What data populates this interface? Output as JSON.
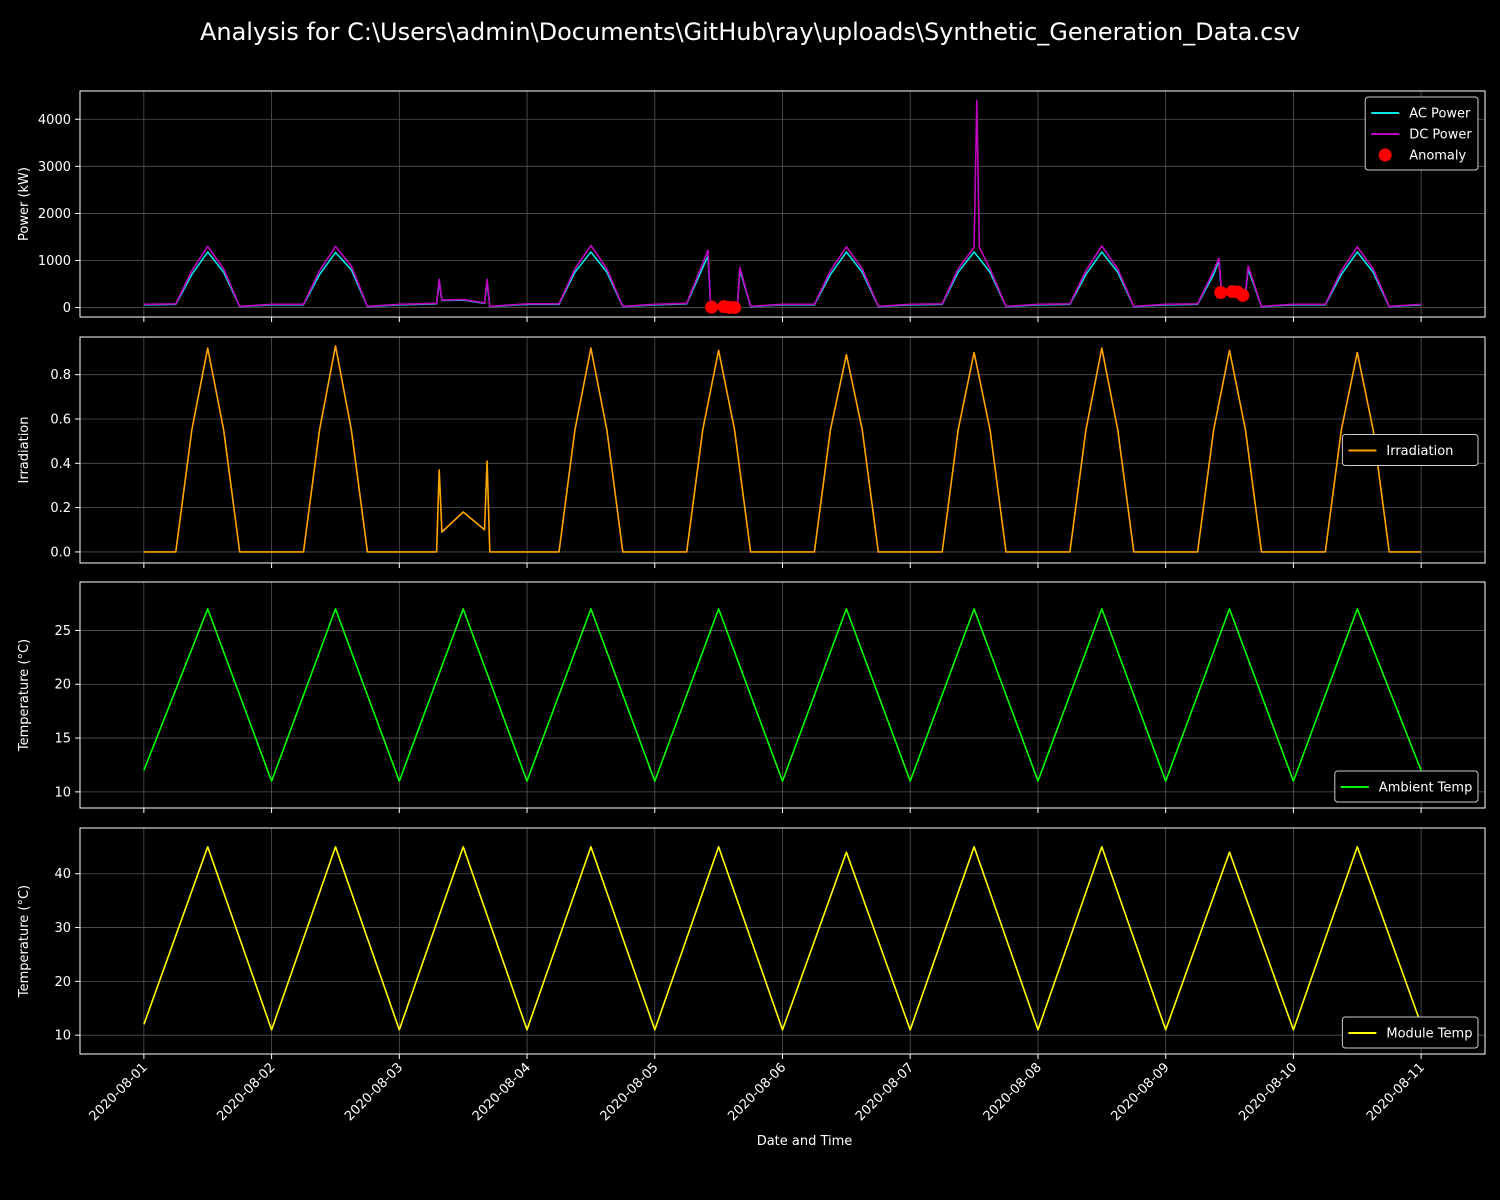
{
  "title": "Analysis for C:\\Users\\admin\\Documents\\GitHub\\ray\\uploads\\Synthetic_Generation_Data.csv",
  "xlabel": "Date and Time",
  "x_ticks": [
    "2020-08-01",
    "2020-08-02",
    "2020-08-03",
    "2020-08-04",
    "2020-08-05",
    "2020-08-06",
    "2020-08-07",
    "2020-08-08",
    "2020-08-09",
    "2020-08-10",
    "2020-08-11"
  ],
  "x_range_days": [
    -0.5,
    10.5
  ],
  "colors": {
    "background": "#000000",
    "grid": "#555555",
    "axes": "#ffffff"
  },
  "chart_data": [
    {
      "type": "line",
      "ylabel": "Power (kW)",
      "ylim": [
        -200,
        4600
      ],
      "yticks": [
        0,
        1000,
        2000,
        3000,
        4000
      ],
      "grid": true,
      "legend_position": "top-right",
      "series": [
        {
          "name": "AC Power",
          "color": "#00e5e5",
          "kind": "line",
          "x": [
            "2020-08-01 00:00",
            "2020-08-01 06:00",
            "2020-08-01 09:00",
            "2020-08-01 12:00",
            "2020-08-01 15:00",
            "2020-08-01 18:00",
            "2020-08-02 00:00",
            "2020-08-02 06:00",
            "2020-08-02 09:00",
            "2020-08-02 12:00",
            "2020-08-02 15:00",
            "2020-08-02 18:00",
            "2020-08-03 00:00",
            "2020-08-03 07:00",
            "2020-08-03 07:30",
            "2020-08-03 08:00",
            "2020-08-03 12:00",
            "2020-08-03 16:00",
            "2020-08-03 16:30",
            "2020-08-03 17:00",
            "2020-08-04 00:00",
            "2020-08-04 06:00",
            "2020-08-04 09:00",
            "2020-08-04 12:00",
            "2020-08-04 15:00",
            "2020-08-04 18:00",
            "2020-08-05 00:00",
            "2020-08-05 06:00",
            "2020-08-05 10:00",
            "2020-08-05 10:30",
            "2020-08-05 11:00",
            "2020-08-05 15:30",
            "2020-08-05 16:00",
            "2020-08-05 18:00",
            "2020-08-06 00:00",
            "2020-08-06 06:00",
            "2020-08-06 09:00",
            "2020-08-06 12:00",
            "2020-08-06 15:00",
            "2020-08-06 18:00",
            "2020-08-07 00:00",
            "2020-08-07 06:00",
            "2020-08-07 09:00",
            "2020-08-07 12:00",
            "2020-08-07 15:00",
            "2020-08-07 18:00",
            "2020-08-08 00:00",
            "2020-08-08 06:00",
            "2020-08-08 09:00",
            "2020-08-08 12:00",
            "2020-08-08 15:00",
            "2020-08-08 18:00",
            "2020-08-09 00:00",
            "2020-08-09 06:00",
            "2020-08-09 09:00",
            "2020-08-09 10:00",
            "2020-08-09 10:30",
            "2020-08-09 15:00",
            "2020-08-09 15:30",
            "2020-08-09 18:00",
            "2020-08-10 00:00",
            "2020-08-10 06:00",
            "2020-08-10 09:00",
            "2020-08-10 12:00",
            "2020-08-10 15:00",
            "2020-08-10 18:00",
            "2020-08-10 24:00"
          ],
          "values": [
            60,
            70,
            700,
            1180,
            750,
            20,
            60,
            60,
            700,
            1170,
            800,
            20,
            60,
            80,
            550,
            150,
            160,
            90,
            550,
            20,
            70,
            70,
            750,
            1180,
            750,
            20,
            60,
            80,
            1100,
            0,
            0,
            0,
            800,
            20,
            60,
            60,
            700,
            1180,
            750,
            20,
            60,
            70,
            750,
            1180,
            750,
            20,
            60,
            70,
            700,
            1180,
            750,
            20,
            60,
            70,
            700,
            1000,
            300,
            300,
            820,
            20,
            60,
            60,
            700,
            1180,
            750,
            20,
            60
          ]
        },
        {
          "name": "DC Power",
          "color": "#c000c0",
          "kind": "line",
          "x": [
            "2020-08-01 00:00",
            "2020-08-01 06:00",
            "2020-08-01 09:00",
            "2020-08-01 12:00",
            "2020-08-01 15:00",
            "2020-08-01 18:00",
            "2020-08-02 00:00",
            "2020-08-02 06:00",
            "2020-08-02 09:00",
            "2020-08-02 12:00",
            "2020-08-02 15:00",
            "2020-08-02 18:00",
            "2020-08-03 00:00",
            "2020-08-03 07:00",
            "2020-08-03 07:30",
            "2020-08-03 08:00",
            "2020-08-03 12:00",
            "2020-08-03 16:00",
            "2020-08-03 16:30",
            "2020-08-03 17:00",
            "2020-08-04 00:00",
            "2020-08-04 06:00",
            "2020-08-04 09:00",
            "2020-08-04 12:00",
            "2020-08-04 15:00",
            "2020-08-04 18:00",
            "2020-08-05 00:00",
            "2020-08-05 06:00",
            "2020-08-05 10:00",
            "2020-08-05 10:30",
            "2020-08-05 11:00",
            "2020-08-05 15:30",
            "2020-08-05 16:00",
            "2020-08-05 18:00",
            "2020-08-06 00:00",
            "2020-08-06 06:00",
            "2020-08-06 09:00",
            "2020-08-06 12:00",
            "2020-08-06 15:00",
            "2020-08-06 18:00",
            "2020-08-07 00:00",
            "2020-08-07 06:00",
            "2020-08-07 09:00",
            "2020-08-07 12:00",
            "2020-08-07 12:30",
            "2020-08-07 13:00",
            "2020-08-07 15:00",
            "2020-08-07 18:00",
            "2020-08-08 00:00",
            "2020-08-08 06:00",
            "2020-08-08 09:00",
            "2020-08-08 12:00",
            "2020-08-08 15:00",
            "2020-08-08 18:00",
            "2020-08-09 00:00",
            "2020-08-09 06:00",
            "2020-08-09 09:00",
            "2020-08-09 10:00",
            "2020-08-09 10:30",
            "2020-08-09 15:00",
            "2020-08-09 15:30",
            "2020-08-09 18:00",
            "2020-08-10 00:00",
            "2020-08-10 06:00",
            "2020-08-10 09:00",
            "2020-08-10 12:00",
            "2020-08-10 15:00",
            "2020-08-10 18:00",
            "2020-08-10 24:00"
          ],
          "values": [
            70,
            80,
            780,
            1300,
            820,
            25,
            70,
            70,
            780,
            1300,
            880,
            25,
            70,
            90,
            600,
            160,
            170,
            100,
            600,
            25,
            80,
            80,
            820,
            1320,
            820,
            25,
            70,
            90,
            1220,
            0,
            0,
            0,
            850,
            25,
            70,
            70,
            780,
            1290,
            820,
            25,
            70,
            80,
            820,
            1280,
            4400,
            1280,
            820,
            25,
            70,
            80,
            780,
            1310,
            820,
            25,
            70,
            80,
            780,
            1050,
            320,
            320,
            880,
            25,
            70,
            70,
            780,
            1290,
            820,
            25,
            70
          ]
        },
        {
          "name": "Anomaly",
          "color": "#ff0000",
          "kind": "scatter",
          "x": [
            "2020-08-05 10:40",
            "2020-08-05 13:00",
            "2020-08-05 14:00",
            "2020-08-05 15:00",
            "2020-08-09 10:20",
            "2020-08-09 12:30",
            "2020-08-09 13:30",
            "2020-08-09 14:30"
          ],
          "values": [
            10,
            20,
            5,
            0,
            320,
            340,
            330,
            260
          ]
        }
      ]
    },
    {
      "type": "line",
      "ylabel": "Irradiation",
      "ylim": [
        -0.05,
        0.97
      ],
      "yticks": [
        0.0,
        0.2,
        0.4,
        0.6,
        0.8
      ],
      "grid": true,
      "legend_position": "center-right",
      "series": [
        {
          "name": "Irradiation",
          "color": "#ffa500",
          "kind": "line",
          "x": [
            "2020-08-01 00:00",
            "2020-08-01 06:00",
            "2020-08-01 09:00",
            "2020-08-01 12:00",
            "2020-08-01 15:00",
            "2020-08-01 18:00",
            "2020-08-02 00:00",
            "2020-08-02 06:00",
            "2020-08-02 09:00",
            "2020-08-02 12:00",
            "2020-08-02 15:00",
            "2020-08-02 18:00",
            "2020-08-03 00:00",
            "2020-08-03 07:00",
            "2020-08-03 07:30",
            "2020-08-03 08:00",
            "2020-08-03 12:00",
            "2020-08-03 16:00",
            "2020-08-03 16:30",
            "2020-08-03 17:00",
            "2020-08-04 00:00",
            "2020-08-04 06:00",
            "2020-08-04 09:00",
            "2020-08-04 12:00",
            "2020-08-04 15:00",
            "2020-08-04 18:00",
            "2020-08-05 00:00",
            "2020-08-05 06:00",
            "2020-08-05 09:00",
            "2020-08-05 12:00",
            "2020-08-05 15:00",
            "2020-08-05 18:00",
            "2020-08-06 00:00",
            "2020-08-06 06:00",
            "2020-08-06 09:00",
            "2020-08-06 12:00",
            "2020-08-06 15:00",
            "2020-08-06 18:00",
            "2020-08-07 00:00",
            "2020-08-07 06:00",
            "2020-08-07 09:00",
            "2020-08-07 12:00",
            "2020-08-07 15:00",
            "2020-08-07 18:00",
            "2020-08-08 00:00",
            "2020-08-08 06:00",
            "2020-08-08 09:00",
            "2020-08-08 12:00",
            "2020-08-08 15:00",
            "2020-08-08 18:00",
            "2020-08-09 00:00",
            "2020-08-09 06:00",
            "2020-08-09 09:00",
            "2020-08-09 12:00",
            "2020-08-09 15:00",
            "2020-08-09 18:00",
            "2020-08-10 00:00",
            "2020-08-10 06:00",
            "2020-08-10 09:00",
            "2020-08-10 12:00",
            "2020-08-10 15:00",
            "2020-08-10 18:00",
            "2020-08-10 24:00"
          ],
          "values": [
            0,
            0,
            0.55,
            0.92,
            0.55,
            0,
            0,
            0,
            0.55,
            0.93,
            0.55,
            0,
            0,
            0,
            0.37,
            0.09,
            0.18,
            0.1,
            0.41,
            0,
            0,
            0,
            0.55,
            0.92,
            0.55,
            0,
            0,
            0,
            0.55,
            0.91,
            0.55,
            0,
            0,
            0,
            0.55,
            0.89,
            0.55,
            0,
            0,
            0,
            0.55,
            0.9,
            0.55,
            0,
            0,
            0,
            0.55,
            0.92,
            0.55,
            0,
            0,
            0,
            0.55,
            0.91,
            0.55,
            0,
            0,
            0,
            0.55,
            0.9,
            0.55,
            0,
            0
          ]
        }
      ]
    },
    {
      "type": "line",
      "ylabel": "Temperature (°C)",
      "ylim": [
        8.5,
        29.5
      ],
      "yticks": [
        10,
        15,
        20,
        25
      ],
      "grid": true,
      "legend_position": "bottom-right",
      "series": [
        {
          "name": "Ambient Temp",
          "color": "#00ff00",
          "kind": "line",
          "x": [
            "2020-08-01 00:00",
            "2020-08-01 12:00",
            "2020-08-02 00:00",
            "2020-08-02 12:00",
            "2020-08-03 00:00",
            "2020-08-03 12:00",
            "2020-08-04 00:00",
            "2020-08-04 12:00",
            "2020-08-05 00:00",
            "2020-08-05 12:00",
            "2020-08-06 00:00",
            "2020-08-06 12:00",
            "2020-08-07 00:00",
            "2020-08-07 12:00",
            "2020-08-08 00:00",
            "2020-08-08 12:00",
            "2020-08-09 00:00",
            "2020-08-09 12:00",
            "2020-08-10 00:00",
            "2020-08-10 12:00",
            "2020-08-10 24:00"
          ],
          "values": [
            12,
            27,
            11,
            27,
            11,
            27,
            11,
            27,
            11,
            27,
            11,
            27,
            11,
            27,
            11,
            27,
            11,
            27,
            11,
            27,
            12
          ]
        }
      ]
    },
    {
      "type": "line",
      "ylabel": "Temperature (°C)",
      "ylim": [
        6.5,
        48.5
      ],
      "yticks": [
        10,
        20,
        30,
        40
      ],
      "grid": true,
      "legend_position": "bottom-right",
      "series": [
        {
          "name": "Module Temp",
          "color": "#ffff00",
          "kind": "line",
          "x": [
            "2020-08-01 00:00",
            "2020-08-01 12:00",
            "2020-08-02 00:00",
            "2020-08-02 12:00",
            "2020-08-03 00:00",
            "2020-08-03 12:00",
            "2020-08-04 00:00",
            "2020-08-04 12:00",
            "2020-08-05 00:00",
            "2020-08-05 12:00",
            "2020-08-06 00:00",
            "2020-08-06 12:00",
            "2020-08-07 00:00",
            "2020-08-07 12:00",
            "2020-08-08 00:00",
            "2020-08-08 12:00",
            "2020-08-09 00:00",
            "2020-08-09 12:00",
            "2020-08-10 00:00",
            "2020-08-10 12:00",
            "2020-08-10 24:00"
          ],
          "values": [
            12,
            45,
            11,
            45,
            11,
            45,
            11,
            45,
            11,
            45,
            11,
            44,
            11,
            45,
            11,
            45,
            11,
            44,
            11,
            45,
            12
          ]
        }
      ]
    }
  ]
}
